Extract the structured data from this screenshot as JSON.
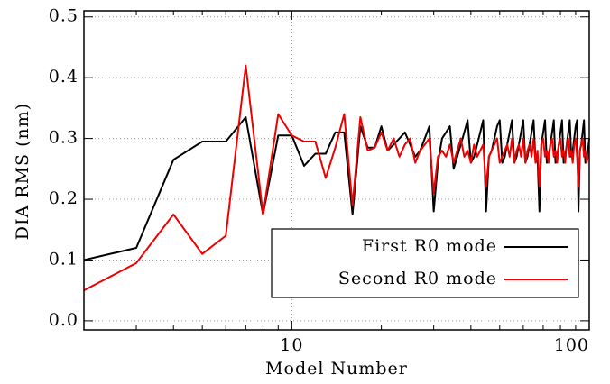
{
  "chart_data": {
    "type": "line",
    "xlabel": "Model Number",
    "ylabel": "DIA RMS (nm)",
    "x": [
      2,
      3,
      4,
      5,
      6,
      7,
      8,
      9,
      10,
      11,
      12,
      13,
      14,
      15,
      16,
      17,
      18,
      19,
      20,
      21,
      22,
      23,
      24,
      25,
      26,
      27,
      28,
      29,
      30,
      31,
      32,
      33,
      34,
      35,
      36,
      37,
      38,
      39,
      40,
      41,
      42,
      43,
      44,
      45,
      46,
      47,
      48,
      49,
      50,
      51,
      52,
      53,
      54,
      55,
      56,
      57,
      58,
      59,
      60,
      61,
      62,
      63,
      64,
      65,
      66,
      67,
      68,
      69,
      70,
      71,
      72,
      73,
      74,
      75,
      76,
      77,
      78,
      79,
      80,
      81,
      82,
      83,
      84,
      85,
      86,
      87,
      88,
      89,
      90,
      91,
      92,
      93,
      94,
      95,
      96,
      97,
      98,
      99,
      100
    ],
    "series": [
      {
        "name": "First R0 mode",
        "color": "#000000",
        "values": [
          0.1,
          0.12,
          0.265,
          0.295,
          0.295,
          0.335,
          0.175,
          0.305,
          0.305,
          0.255,
          0.275,
          0.275,
          0.31,
          0.31,
          0.175,
          0.32,
          0.285,
          0.285,
          0.32,
          0.28,
          0.29,
          0.3,
          0.31,
          0.29,
          0.27,
          0.28,
          0.3,
          0.32,
          0.18,
          0.26,
          0.3,
          0.31,
          0.32,
          0.25,
          0.27,
          0.29,
          0.31,
          0.33,
          0.26,
          0.27,
          0.29,
          0.31,
          0.33,
          0.18,
          0.27,
          0.28,
          0.3,
          0.32,
          0.33,
          0.26,
          0.27,
          0.29,
          0.31,
          0.33,
          0.26,
          0.27,
          0.29,
          0.31,
          0.33,
          0.26,
          0.27,
          0.29,
          0.31,
          0.33,
          0.26,
          0.27,
          0.18,
          0.29,
          0.31,
          0.33,
          0.26,
          0.27,
          0.29,
          0.31,
          0.33,
          0.26,
          0.27,
          0.29,
          0.31,
          0.33,
          0.26,
          0.27,
          0.29,
          0.31,
          0.33,
          0.27,
          0.28,
          0.3,
          0.32,
          0.33,
          0.18,
          0.28,
          0.29,
          0.31,
          0.33,
          0.26,
          0.27,
          0.28,
          0.3
        ]
      },
      {
        "name": "Second R0 mode",
        "color": "#ee0000",
        "values": [
          0.05,
          0.095,
          0.175,
          0.11,
          0.14,
          0.42,
          0.175,
          0.34,
          0.305,
          0.295,
          0.295,
          0.235,
          0.285,
          0.34,
          0.19,
          0.335,
          0.28,
          0.285,
          0.31,
          0.28,
          0.3,
          0.27,
          0.29,
          0.3,
          0.26,
          0.28,
          0.29,
          0.3,
          0.21,
          0.27,
          0.28,
          0.27,
          0.29,
          0.26,
          0.28,
          0.3,
          0.27,
          0.28,
          0.26,
          0.29,
          0.27,
          0.28,
          0.29,
          0.22,
          0.27,
          0.28,
          0.29,
          0.3,
          0.26,
          0.27,
          0.28,
          0.29,
          0.27,
          0.3,
          0.26,
          0.28,
          0.29,
          0.27,
          0.3,
          0.26,
          0.28,
          0.29,
          0.27,
          0.3,
          0.26,
          0.28,
          0.22,
          0.29,
          0.3,
          0.27,
          0.28,
          0.26,
          0.29,
          0.3,
          0.27,
          0.28,
          0.26,
          0.29,
          0.3,
          0.27,
          0.28,
          0.26,
          0.29,
          0.3,
          0.27,
          0.28,
          0.26,
          0.29,
          0.3,
          0.27,
          0.22,
          0.28,
          0.29,
          0.3,
          0.27,
          0.28,
          0.26,
          0.27,
          0.28
        ]
      }
    ],
    "xlim": [
      2,
      100
    ],
    "xscale": "log",
    "xticks": [
      10,
      100
    ],
    "xminorticks": [
      2,
      3,
      4,
      5,
      6,
      7,
      8,
      9,
      20,
      30,
      40,
      50,
      60,
      70,
      80,
      90
    ],
    "ylim": [
      -0.015,
      0.51
    ],
    "yticks": [
      {
        "value": 0,
        "label": "0.0"
      },
      0.1,
      0.2,
      0.3,
      0.4,
      0.5
    ],
    "grid": true,
    "legend": "lower right"
  }
}
